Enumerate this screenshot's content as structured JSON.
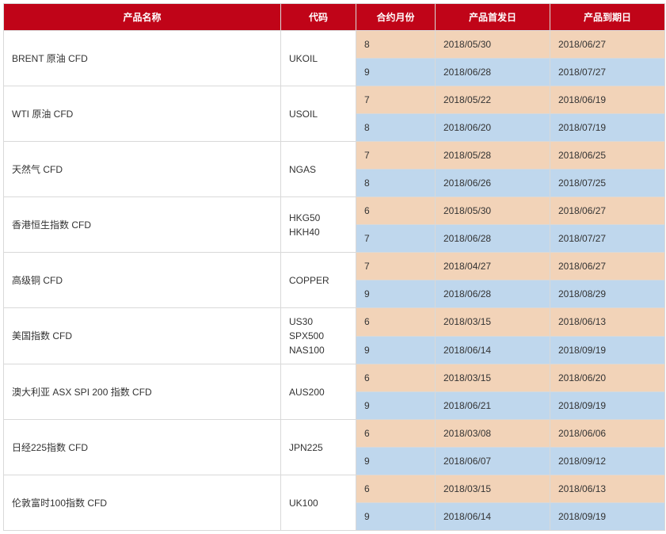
{
  "headers": {
    "name": "产品名称",
    "code": "代码",
    "month": "合约月份",
    "start": "产品首发日",
    "end": "产品到期日"
  },
  "colors": {
    "header_bg": "#c00418",
    "header_text": "#ffffff",
    "row_odd_bg": "#f2d3b8",
    "row_even_bg": "#bfd7ed",
    "white_bg": "#ffffff",
    "border": "#d9d9d9",
    "text": "#333333"
  },
  "products": [
    {
      "name": "BRENT 原油 CFD",
      "code": "UKOIL",
      "contracts": [
        {
          "month": "8",
          "start": "2018/05/30",
          "end": "2018/06/27"
        },
        {
          "month": "9",
          "start": "2018/06/28",
          "end": "2018/07/27"
        }
      ]
    },
    {
      "name": "WTI 原油 CFD",
      "code": "USOIL",
      "contracts": [
        {
          "month": "7",
          "start": "2018/05/22",
          "end": "2018/06/19"
        },
        {
          "month": "8",
          "start": "2018/06/20",
          "end": "2018/07/19"
        }
      ]
    },
    {
      "name": "天然气 CFD",
      "code": "NGAS",
      "contracts": [
        {
          "month": "7",
          "start": "2018/05/28",
          "end": "2018/06/25"
        },
        {
          "month": "8",
          "start": "2018/06/26",
          "end": "2018/07/25"
        }
      ]
    },
    {
      "name": "香港恒生指数 CFD",
      "code": "HKG50\nHKH40",
      "contracts": [
        {
          "month": "6",
          "start": "2018/05/30",
          "end": "2018/06/27"
        },
        {
          "month": "7",
          "start": "2018/06/28",
          "end": "2018/07/27"
        }
      ]
    },
    {
      "name": "高级铜 CFD",
      "code": "COPPER",
      "contracts": [
        {
          "month": "7",
          "start": "2018/04/27",
          "end": "2018/06/27"
        },
        {
          "month": "9",
          "start": "2018/06/28",
          "end": "2018/08/29"
        }
      ]
    },
    {
      "name": "美国指数 CFD",
      "code": "US30\nSPX500\nNAS100",
      "contracts": [
        {
          "month": "6",
          "start": "2018/03/15",
          "end": "2018/06/13"
        },
        {
          "month": "9",
          "start": "2018/06/14",
          "end": "2018/09/19"
        }
      ]
    },
    {
      "name": "澳大利亚 ASX SPI 200 指数 CFD",
      "code": "AUS200",
      "contracts": [
        {
          "month": "6",
          "start": "2018/03/15",
          "end": "2018/06/20"
        },
        {
          "month": "9",
          "start": "2018/06/21",
          "end": "2018/09/19"
        }
      ]
    },
    {
      "name": "日经225指数 CFD",
      "code": "JPN225",
      "contracts": [
        {
          "month": "6",
          "start": "2018/03/08",
          "end": "2018/06/06"
        },
        {
          "month": "9",
          "start": "2018/06/07",
          "end": "2018/09/12"
        }
      ]
    },
    {
      "name": "伦敦富时100指数 CFD",
      "code": "UK100",
      "contracts": [
        {
          "month": "6",
          "start": "2018/03/15",
          "end": "2018/06/13"
        },
        {
          "month": "9",
          "start": "2018/06/14",
          "end": "2018/09/19"
        }
      ]
    }
  ]
}
